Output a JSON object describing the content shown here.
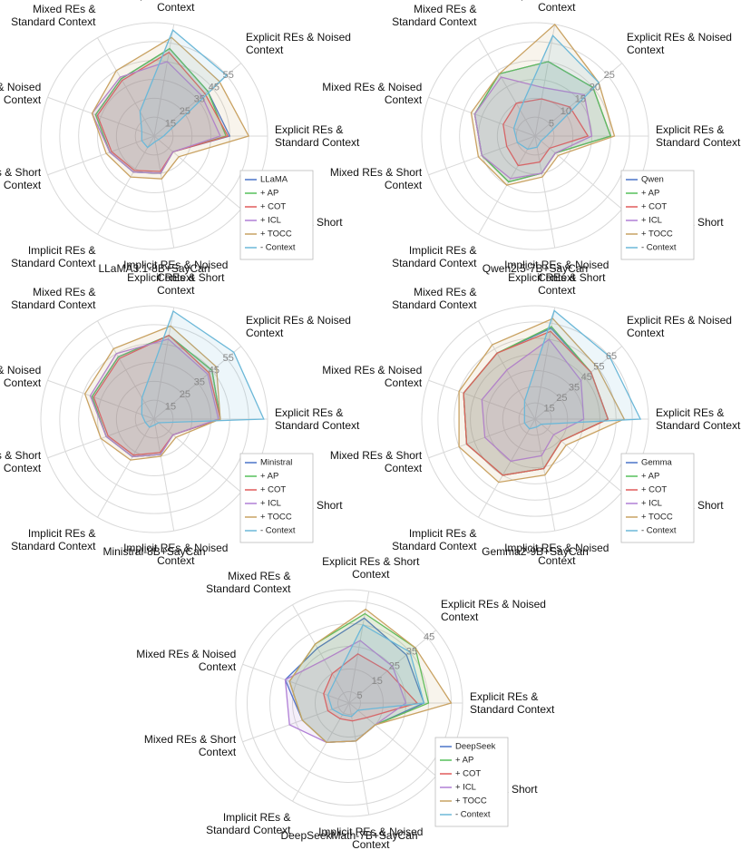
{
  "chart_data": [
    {
      "type": "radar",
      "title": "LLaMA3.1-8B+SayCan",
      "categories": [
        "Explicit REs & Short Context",
        "Explicit REs & Noised Context",
        "Explicit REs & Standard Context",
        "Implicit REs & Short Context",
        "Implicit REs & Noised Context",
        "Implicit REs & Standard Context",
        "Mixed REs & Short Context",
        "Mixed REs & Noised Context",
        "Mixed REs & Standard Context"
      ],
      "rlim": [
        5,
        65
      ],
      "rticks": [
        15,
        25,
        35,
        45,
        55
      ],
      "series": [
        {
          "name": "LLaMA",
          "color": "#4a74c9",
          "values": [
            52,
            42,
            45,
            18,
            25,
            27,
            30,
            38,
            40
          ]
        },
        {
          "name": "+ AP",
          "color": "#55c05a",
          "values": [
            52,
            42,
            43,
            18,
            25,
            27,
            30,
            38,
            40
          ]
        },
        {
          "name": "+ COT",
          "color": "#e05a5a",
          "values": [
            50,
            40,
            44,
            18,
            24,
            26,
            29,
            37,
            39
          ]
        },
        {
          "name": "+ ICL",
          "color": "#b07fd6",
          "values": [
            45,
            38,
            40,
            18,
            25,
            27,
            30,
            40,
            41
          ]
        },
        {
          "name": "+ TOCC",
          "color": "#c9a262",
          "values": [
            58,
            50,
            55,
            22,
            28,
            30,
            32,
            40,
            45
          ]
        },
        {
          "name": "- Context",
          "color": "#6cb8d8",
          "values": [
            62,
            55,
            10,
            8,
            8,
            12,
            12,
            12,
            20
          ]
        }
      ]
    },
    {
      "type": "radar",
      "title": "Qwen2.5-7B+SayCan",
      "categories": [
        "Explicit REs & Short Context",
        "Explicit REs & Noised Context",
        "Explicit REs & Standard Context",
        "Implicit REs & Short Context",
        "Implicit REs & Noised Context",
        "Implicit REs & Standard Context",
        "Mixed REs & Short Context",
        "Mixed REs & Noised Context",
        "Mixed REs & Standard Context"
      ],
      "rlim": [
        0,
        30
      ],
      "rticks": [
        5,
        10,
        15,
        20,
        25
      ],
      "series": [
        {
          "name": "Qwen",
          "color": "#4a74c9",
          "values": [
            20,
            20,
            20,
            7,
            10,
            14,
            15,
            17,
            19
          ]
        },
        {
          "name": "+ AP",
          "color": "#55c05a",
          "values": [
            20,
            20,
            20,
            7,
            10,
            14,
            15,
            17,
            19
          ]
        },
        {
          "name": "+ COT",
          "color": "#e05a5a",
          "values": [
            10,
            12,
            14,
            5,
            7,
            9,
            8,
            9,
            10
          ]
        },
        {
          "name": "+ ICL",
          "color": "#b07fd6",
          "values": [
            13,
            17,
            15,
            7,
            10,
            13,
            15,
            17,
            18
          ]
        },
        {
          "name": "+ TOCC",
          "color": "#c9a262",
          "values": [
            30,
            22,
            21,
            8,
            11,
            15,
            16,
            18,
            19
          ]
        },
        {
          "name": "- Context",
          "color": "#6cb8d8",
          "values": [
            27,
            22,
            3,
            2,
            3,
            4,
            5,
            6,
            8
          ]
        }
      ]
    },
    {
      "type": "radar",
      "title": "Ministral-8B+SayCan",
      "categories": [
        "Explicit REs & Short Context",
        "Explicit REs & Noised Context",
        "Explicit REs & Standard Context",
        "Implicit REs & Short Context",
        "Implicit REs & Noised Context",
        "Implicit REs & Standard Context",
        "Mixed REs & Short Context",
        "Mixed REs & Noised Context",
        "Mixed REs & Standard Context"
      ],
      "rlim": [
        5,
        65
      ],
      "rticks": [
        15,
        25,
        35,
        45,
        55
      ],
      "series": [
        {
          "name": "Ministral",
          "color": "#4a74c9",
          "values": [
            50,
            45,
            40,
            18,
            24,
            28,
            32,
            40,
            43
          ]
        },
        {
          "name": "+ AP",
          "color": "#55c05a",
          "values": [
            50,
            45,
            40,
            18,
            24,
            28,
            32,
            40,
            43
          ]
        },
        {
          "name": "+ COT",
          "color": "#e05a5a",
          "values": [
            50,
            43,
            40,
            18,
            23,
            27,
            31,
            39,
            42
          ]
        },
        {
          "name": "+ ICL",
          "color": "#b07fd6",
          "values": [
            48,
            42,
            39,
            18,
            24,
            28,
            32,
            41,
            45
          ]
        },
        {
          "name": "+ TOCC",
          "color": "#c9a262",
          "values": [
            55,
            48,
            40,
            20,
            25,
            30,
            35,
            44,
            48
          ]
        },
        {
          "name": "- Context",
          "color": "#6cb8d8",
          "values": [
            63,
            60,
            63,
            8,
            8,
            10,
            10,
            12,
            18
          ]
        }
      ]
    },
    {
      "type": "radar",
      "title": "Gemma2-9B+SayCan",
      "categories": [
        "Explicit REs & Short Context",
        "Explicit REs & Noised Context",
        "Explicit REs & Standard Context",
        "Implicit REs & Short Context",
        "Implicit REs & Noised Context",
        "Implicit REs & Standard Context",
        "Mixed REs & Short Context",
        "Mixed REs & Noised Context",
        "Mixed REs & Standard Context"
      ],
      "rlim": [
        5,
        75
      ],
      "rticks": [
        15,
        25,
        35,
        45,
        55,
        65
      ],
      "series": [
        {
          "name": "Gemma",
          "color": "#4a74c9",
          "values": [
            62,
            50,
            50,
            26,
            36,
            45,
            50,
            52,
            52
          ]
        },
        {
          "name": "+ AP",
          "color": "#55c05a",
          "values": [
            63,
            50,
            50,
            26,
            36,
            45,
            50,
            52,
            52
          ]
        },
        {
          "name": "+ COT",
          "color": "#e05a5a",
          "values": [
            60,
            50,
            50,
            26,
            36,
            45,
            50,
            52,
            52
          ]
        },
        {
          "name": "+ ICL",
          "color": "#b07fd6",
          "values": [
            55,
            42,
            35,
            20,
            28,
            35,
            38,
            40,
            40
          ]
        },
        {
          "name": "+ TOCC",
          "color": "#c9a262",
          "values": [
            68,
            55,
            60,
            30,
            40,
            50,
            55,
            55,
            58
          ]
        },
        {
          "name": "- Context",
          "color": "#6cb8d8",
          "values": [
            73,
            65,
            70,
            10,
            10,
            12,
            12,
            12,
            18
          ]
        }
      ]
    },
    {
      "type": "radar",
      "title": "DeepSeekMath-7B+SayCan",
      "categories": [
        "Explicit REs & Short Context",
        "Explicit REs & Noised Context",
        "Explicit REs & Standard Context",
        "Implicit REs & Short Context",
        "Implicit REs & Noised Context",
        "Implicit REs & Standard Context",
        "Mixed REs & Short Context",
        "Mixed REs & Noised Context",
        "Mixed REs & Standard Context"
      ],
      "rlim": [
        0,
        50
      ],
      "rticks": [
        5,
        15,
        25,
        35,
        45
      ],
      "series": [
        {
          "name": "DeepSeek",
          "color": "#4a74c9",
          "values": [
            38,
            33,
            33,
            15,
            17,
            20,
            22,
            30,
            28
          ]
        },
        {
          "name": "+ AP",
          "color": "#55c05a",
          "values": [
            40,
            38,
            35,
            15,
            17,
            20,
            22,
            28,
            30
          ]
        },
        {
          "name": "+ COT",
          "color": "#e05a5a",
          "values": [
            22,
            22,
            30,
            10,
            8,
            8,
            10,
            12,
            15
          ]
        },
        {
          "name": "+ ICL",
          "color": "#b07fd6",
          "values": [
            28,
            25,
            25,
            15,
            17,
            20,
            28,
            30,
            22
          ]
        },
        {
          "name": "+ TOCC",
          "color": "#c9a262",
          "values": [
            42,
            38,
            45,
            15,
            17,
            20,
            22,
            28,
            30
          ]
        },
        {
          "name": "- Context",
          "color": "#6cb8d8",
          "values": [
            35,
            35,
            33,
            5,
            6,
            6,
            8,
            10,
            12
          ]
        }
      ]
    }
  ]
}
